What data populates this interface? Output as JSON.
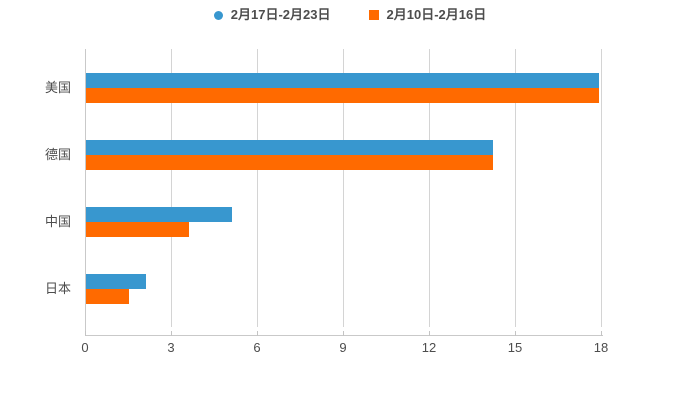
{
  "legend": {
    "items": [
      {
        "label": "2月17日-2月23日",
        "color": "#3897cf",
        "marker": "circle"
      },
      {
        "label": "2月10日-2月16日",
        "color": "#ff6a00",
        "marker": "square"
      }
    ],
    "position": "top-center"
  },
  "chart_data": {
    "type": "bar",
    "orientation": "horizontal",
    "title": "",
    "xlabel": "",
    "ylabel": "",
    "categories": [
      "美国",
      "德国",
      "中国",
      "日本"
    ],
    "series": [
      {
        "name": "2月17日-2月23日",
        "color": "#3897cf",
        "values": [
          17.9,
          14.2,
          5.1,
          2.1
        ]
      },
      {
        "name": "2月10日-2月16日",
        "color": "#ff6a00",
        "values": [
          17.9,
          14.2,
          3.6,
          1.5
        ]
      }
    ],
    "xlim": [
      0,
      18
    ],
    "xticks": [
      0,
      3,
      6,
      9,
      12,
      15,
      18
    ],
    "grid": true,
    "legend_position": "top-center"
  },
  "colors": {
    "background": "#ffffff",
    "grid": "#d4d4d4",
    "axis": "#c9c9c9",
    "text": "#4d4d4d",
    "series_blue": "#3897cf",
    "series_orange": "#ff6a00"
  }
}
